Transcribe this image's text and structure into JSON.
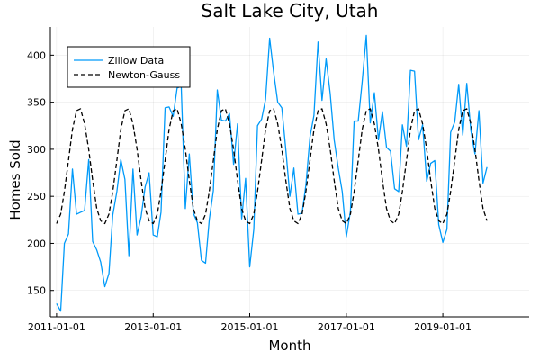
{
  "chart_data": {
    "type": "line",
    "title": "Salt Lake City, Utah",
    "xlabel": "Month",
    "ylabel": "Homes Sold",
    "x_ticks": [
      "2011-01-01",
      "2013-01-01",
      "2015-01-01",
      "2017-01-01",
      "2019-01-01"
    ],
    "y_ticks": [
      150,
      200,
      250,
      300,
      350,
      400
    ],
    "xlim": [
      "2010-11-15",
      "2020-10-15"
    ],
    "ylim": [
      122,
      430
    ],
    "grid": true,
    "legend_position": "top-left",
    "series": [
      {
        "name": "Zillow Data",
        "color": "#009af9",
        "style": "solid",
        "x": [
          "2011-01-01",
          "2011-02-01",
          "2011-03-01",
          "2011-04-01",
          "2011-05-01",
          "2011-06-01",
          "2011-07-01",
          "2011-08-01",
          "2011-09-01",
          "2011-10-01",
          "2011-11-01",
          "2011-12-01",
          "2012-01-01",
          "2012-02-01",
          "2012-03-01",
          "2012-04-01",
          "2012-05-01",
          "2012-06-01",
          "2012-07-01",
          "2012-08-01",
          "2012-09-01",
          "2012-10-01",
          "2012-11-01",
          "2012-12-01",
          "2013-01-01",
          "2013-02-01",
          "2013-03-01",
          "2013-04-01",
          "2013-05-01",
          "2013-06-01",
          "2013-07-01",
          "2013-08-01",
          "2013-09-01",
          "2013-10-01",
          "2013-11-01",
          "2013-12-01",
          "2014-01-01",
          "2014-02-01",
          "2014-03-01",
          "2014-04-01",
          "2014-05-01",
          "2014-06-01",
          "2014-07-01",
          "2014-08-01",
          "2014-09-01",
          "2014-10-01",
          "2014-11-01",
          "2014-12-01",
          "2015-01-01",
          "2015-02-01",
          "2015-03-01",
          "2015-04-01",
          "2015-05-01",
          "2015-06-01",
          "2015-07-01",
          "2015-08-01",
          "2015-09-01",
          "2015-10-01",
          "2015-11-01",
          "2015-12-01",
          "2016-01-01",
          "2016-02-01",
          "2016-03-01",
          "2016-04-01",
          "2016-05-01",
          "2016-06-01",
          "2016-07-01",
          "2016-08-01",
          "2016-09-01",
          "2016-10-01",
          "2016-11-01",
          "2016-12-01",
          "2017-01-01",
          "2017-02-01",
          "2017-03-01",
          "2017-04-01",
          "2017-05-01",
          "2017-06-01",
          "2017-07-01",
          "2017-08-01",
          "2017-09-01",
          "2017-10-01",
          "2017-11-01",
          "2017-12-01",
          "2018-01-01",
          "2018-02-01",
          "2018-03-01",
          "2018-04-01",
          "2018-05-01",
          "2018-06-01",
          "2018-07-01",
          "2018-08-01",
          "2018-09-01",
          "2018-10-01",
          "2018-11-01",
          "2018-12-01",
          "2019-01-01",
          "2019-02-01",
          "2019-03-01",
          "2019-04-01",
          "2019-05-01",
          "2019-06-01",
          "2019-07-01",
          "2019-08-01",
          "2019-09-01",
          "2019-10-01",
          "2019-11-01",
          "2019-12-01"
        ],
        "y": [
          136,
          128,
          200,
          210,
          279,
          231,
          233,
          235,
          289,
          202,
          193,
          180,
          154,
          168,
          230,
          255,
          289,
          268,
          187,
          279,
          209,
          228,
          260,
          275,
          209,
          207,
          233,
          344,
          345,
          335,
          365,
          367,
          237,
          295,
          232,
          222,
          182,
          179,
          225,
          256,
          363,
          331,
          330,
          338,
          284,
          327,
          226,
          269,
          175,
          215,
          325,
          332,
          353,
          418,
          382,
          350,
          344,
          300,
          250,
          280,
          231,
          232,
          262,
          313,
          336,
          414,
          352,
          396,
          359,
          310,
          280,
          255,
          207,
          234,
          330,
          330,
          372,
          421,
          328,
          360,
          310,
          340,
          302,
          298,
          258,
          255,
          326,
          303,
          384,
          383,
          310,
          326,
          266,
          285,
          288,
          220,
          201,
          215,
          318,
          329,
          369,
          315,
          370,
          320,
          295,
          341,
          264,
          281
        ]
      },
      {
        "name": "Newton-Gauss",
        "color": "#000000",
        "style": "dashed",
        "x": [
          "2011-01-01",
          "2011-02-01",
          "2011-03-01",
          "2011-04-01",
          "2011-05-01",
          "2011-06-01",
          "2011-07-01",
          "2011-08-01",
          "2011-09-01",
          "2011-10-01",
          "2011-11-01",
          "2011-12-01",
          "2012-01-01",
          "2012-02-01",
          "2012-03-01",
          "2012-04-01",
          "2012-05-01",
          "2012-06-01",
          "2012-07-01",
          "2012-08-01",
          "2012-09-01",
          "2012-10-01",
          "2012-11-01",
          "2012-12-01",
          "2013-01-01",
          "2013-02-01",
          "2013-03-01",
          "2013-04-01",
          "2013-05-01",
          "2013-06-01",
          "2013-07-01",
          "2013-08-01",
          "2013-09-01",
          "2013-10-01",
          "2013-11-01",
          "2013-12-01",
          "2014-01-01",
          "2014-02-01",
          "2014-03-01",
          "2014-04-01",
          "2014-05-01",
          "2014-06-01",
          "2014-07-01",
          "2014-08-01",
          "2014-09-01",
          "2014-10-01",
          "2014-11-01",
          "2014-12-01",
          "2015-01-01",
          "2015-02-01",
          "2015-03-01",
          "2015-04-01",
          "2015-05-01",
          "2015-06-01",
          "2015-07-01",
          "2015-08-01",
          "2015-09-01",
          "2015-10-01",
          "2015-11-01",
          "2015-12-01",
          "2016-01-01",
          "2016-02-01",
          "2016-03-01",
          "2016-04-01",
          "2016-05-01",
          "2016-06-01",
          "2016-07-01",
          "2016-08-01",
          "2016-09-01",
          "2016-10-01",
          "2016-11-01",
          "2016-12-01",
          "2017-01-01",
          "2017-02-01",
          "2017-03-01",
          "2017-04-01",
          "2017-05-01",
          "2017-06-01",
          "2017-07-01",
          "2017-08-01",
          "2017-09-01",
          "2017-10-01",
          "2017-11-01",
          "2017-12-01",
          "2018-01-01",
          "2018-02-01",
          "2018-03-01",
          "2018-04-01",
          "2018-05-01",
          "2018-06-01",
          "2018-07-01",
          "2018-08-01",
          "2018-09-01",
          "2018-10-01",
          "2018-11-01",
          "2018-12-01",
          "2019-01-01",
          "2019-02-01",
          "2019-03-01",
          "2019-04-01",
          "2019-05-01",
          "2019-06-01",
          "2019-07-01",
          "2019-08-01",
          "2019-09-01",
          "2019-10-01",
          "2019-11-01",
          "2019-12-01"
        ],
        "y": [
          221,
          231,
          255,
          288,
          321,
          341,
          343,
          327,
          300,
          267,
          237,
          224,
          221,
          231,
          255,
          288,
          321,
          341,
          343,
          327,
          300,
          267,
          237,
          224,
          221,
          231,
          255,
          288,
          321,
          341,
          343,
          327,
          300,
          267,
          237,
          224,
          221,
          231,
          255,
          288,
          321,
          341,
          343,
          327,
          300,
          267,
          237,
          224,
          221,
          231,
          255,
          288,
          321,
          341,
          343,
          327,
          300,
          267,
          237,
          224,
          221,
          231,
          255,
          288,
          321,
          341,
          343,
          327,
          300,
          267,
          237,
          224,
          221,
          231,
          255,
          288,
          321,
          341,
          343,
          327,
          300,
          267,
          237,
          224,
          221,
          231,
          255,
          288,
          321,
          341,
          343,
          327,
          300,
          267,
          237,
          224,
          221,
          231,
          255,
          288,
          321,
          341,
          343,
          327,
          300,
          267,
          237,
          224
        ]
      }
    ]
  }
}
